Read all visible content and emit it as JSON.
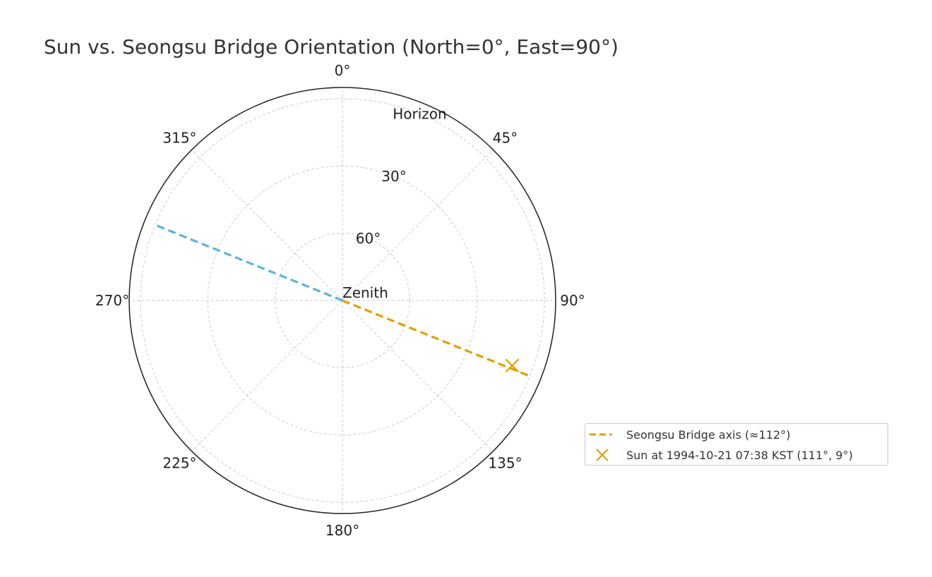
{
  "chart_data": {
    "type": "polar",
    "title": "Sun vs. Seongsu Bridge Orientation (North=0°, East=90°)",
    "theta_zero": "N",
    "theta_direction": "clockwise",
    "theta_ticks": [
      {
        "deg": 0,
        "label": "0°"
      },
      {
        "deg": 45,
        "label": "45°"
      },
      {
        "deg": 90,
        "label": "90°"
      },
      {
        "deg": 135,
        "label": "135°"
      },
      {
        "deg": 180,
        "label": "180°"
      },
      {
        "deg": 225,
        "label": "225°"
      },
      {
        "deg": 270,
        "label": "270°"
      },
      {
        "deg": 315,
        "label": "315°"
      }
    ],
    "r_axis": "zenith_distance",
    "rlim": [
      0,
      95
    ],
    "r_ticks": [
      {
        "alt": 90,
        "label": "Zenith"
      },
      {
        "alt": 60,
        "label": "60°"
      },
      {
        "alt": 30,
        "label": "30°"
      },
      {
        "alt": 0,
        "label": "Horizon"
      }
    ],
    "grid": true,
    "legend_position": "lower-right outside",
    "series": [
      {
        "name": "Seongsu Bridge axis (≈112°)",
        "kind": "dashed-line",
        "color": "#E0A000",
        "points": [
          {
            "az": 112,
            "alt": 90
          },
          {
            "az": 112,
            "alt": -1
          }
        ]
      },
      {
        "kind": "dashed-line",
        "color": "#5AB4DC",
        "points": [
          {
            "az": 292,
            "alt": 90
          },
          {
            "az": 292,
            "alt": -1
          }
        ]
      },
      {
        "name": "Sun at 1994-10-21 07:38 KST (111°, 9°)",
        "kind": "marker-x",
        "color": "#E0A000",
        "points": [
          {
            "az": 111,
            "alt": 9
          }
        ]
      }
    ]
  }
}
